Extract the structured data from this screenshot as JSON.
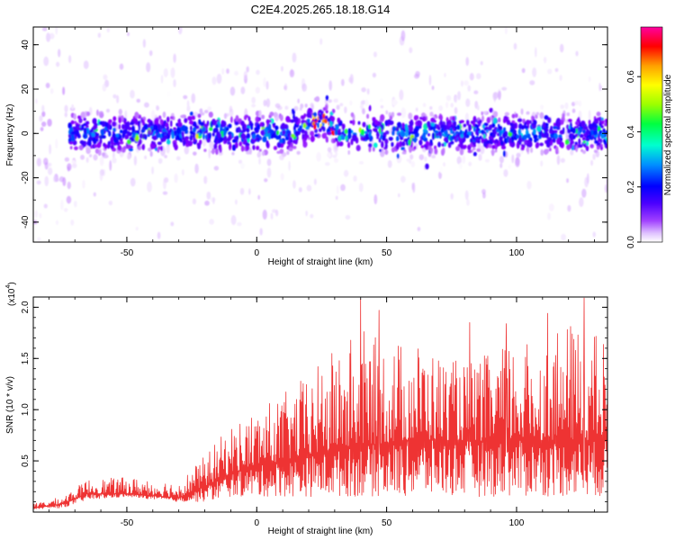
{
  "page": {
    "title": "C2E4.2025.265.18.18.G14"
  },
  "chart_data": [
    {
      "type": "heatmap",
      "title": "C2E4.2025.265.18.18.G14",
      "xlabel": "Height of straight line (km)",
      "ylabel": "Frequency (Hz)",
      "xlim": [
        -86,
        135
      ],
      "ylim": [
        -49,
        48
      ],
      "xticks": [
        -50,
        0,
        50,
        100
      ],
      "xtick_labels": [
        "-50",
        "0",
        "50",
        "100"
      ],
      "yticks": [
        -40,
        -20,
        0,
        20,
        40
      ],
      "ytick_labels": [
        "-40",
        "-20",
        "0",
        "20",
        "40"
      ],
      "colorbar": {
        "label": "Normalized spectral amplitude",
        "range": [
          0.0,
          0.78
        ],
        "ticks": [
          0.0,
          0.2,
          0.4,
          0.6
        ],
        "tick_labels": [
          "0.0",
          "0.2",
          "0.4",
          "0.6"
        ],
        "colormap": [
          "#ffffff",
          "#d9b3ff",
          "#8b00ff",
          "#4b00ff",
          "#0000ff",
          "#0090ff",
          "#00ffd0",
          "#00ff40",
          "#9cff00",
          "#ffff00",
          "#ffa000",
          "#ff0000",
          "#ff00a0"
        ]
      },
      "band": {
        "description_values": {
          "center_frequency_hz": 0,
          "half_width_hz": 9,
          "bump_center_km": 24,
          "bump_peak_hz": 6
        }
      }
    },
    {
      "type": "line",
      "xlabel": "Height of straight line (km)",
      "ylabel": "SNR (10 * v/v)",
      "multiplier": "(x10",
      "multiplier_exp": "4",
      "multiplier_close": ")",
      "xlim": [
        -86,
        135
      ],
      "ylim": [
        0,
        21000
      ],
      "xticks": [
        -50,
        0,
        50,
        100
      ],
      "xtick_labels": [
        "-50",
        "0",
        "50",
        "100"
      ],
      "yticks": [
        5000,
        10000,
        15000,
        20000
      ],
      "ytick_labels": [
        "0.5",
        "1.0",
        "1.5",
        "2.0"
      ],
      "series": [
        {
          "name": "SNR",
          "color": "#ee3333",
          "envelope": {
            "x": [
              -86,
              -75,
              -65,
              -50,
              -30,
              -20,
              -10,
              0,
              10,
              20,
              30,
              40,
              50,
              60,
              70,
              80,
              90,
              100,
              110,
              120,
              135
            ],
            "upper": [
              800,
              1500,
              3200,
              3400,
              3000,
              5500,
              8500,
              10000,
              11500,
              13500,
              16000,
              18000,
              16500,
              17000,
              15500,
              14500,
              15500,
              17000,
              16000,
              18500,
              17000
            ],
            "lower": [
              300,
              400,
              1200,
              1500,
              1000,
              1000,
              1500,
              1500,
              1500,
              1500,
              1500,
              1500,
              1500,
              1500,
              1500,
              1500,
              1500,
              1500,
              1500,
              1500,
              1500
            ],
            "base": [
              400,
              800,
              1800,
              1800,
              1400,
              2500,
              3800,
              4500,
              5000,
              5500,
              6000,
              6500,
              6700,
              7000,
              7000,
              7000,
              6900,
              7000,
              7000,
              7000,
              7000
            ]
          },
          "peaks": [
            {
              "x": 40,
              "y": 20800
            },
            {
              "x": 126,
              "y": 20900
            },
            {
              "x": 112,
              "y": 19400
            },
            {
              "x": 47,
              "y": 19700
            },
            {
              "x": 82,
              "y": 18500
            },
            {
              "x": 96,
              "y": 18400
            }
          ]
        }
      ]
    }
  ]
}
